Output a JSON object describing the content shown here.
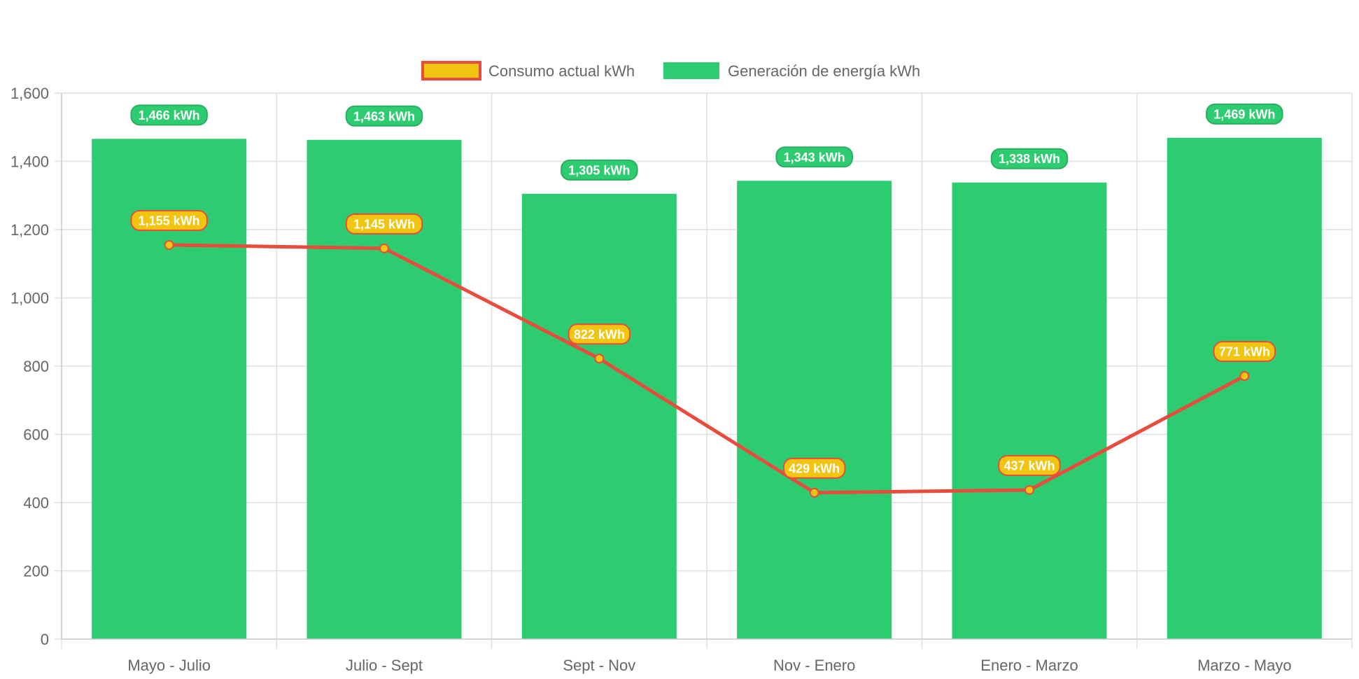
{
  "chart_data": {
    "type": "bar",
    "categories": [
      "Mayo - Julio",
      "Julio - Sept",
      "Sept - Nov",
      "Nov - Enero",
      "Enero - Marzo",
      "Marzo - Mayo"
    ],
    "series": [
      {
        "name": "Consumo actual kWh",
        "type": "line",
        "values": [
          1155,
          1145,
          822,
          429,
          437,
          771
        ],
        "labels": [
          "1,155 kWh",
          "1,145 kWh",
          "822 kWh",
          "429 kWh",
          "437 kWh",
          "771 kWh"
        ],
        "color": "#e74c3c",
        "fill_color": "#f1c40f"
      },
      {
        "name": "Generación de energía kWh",
        "type": "bar",
        "values": [
          1466,
          1463,
          1305,
          1343,
          1338,
          1469
        ],
        "labels": [
          "1,466 kWh",
          "1,463 kWh",
          "1,305 kWh",
          "1,343 kWh",
          "1,338 kWh",
          "1,469 kWh"
        ],
        "color": "#2ecc71",
        "label_border": "#27ae60"
      }
    ],
    "y_ticks": [
      "0",
      "200",
      "400",
      "600",
      "800",
      "1,000",
      "1,200",
      "1,400",
      "1,600"
    ],
    "ylim": [
      0,
      1600
    ],
    "grid": true,
    "legend_position": "top"
  }
}
